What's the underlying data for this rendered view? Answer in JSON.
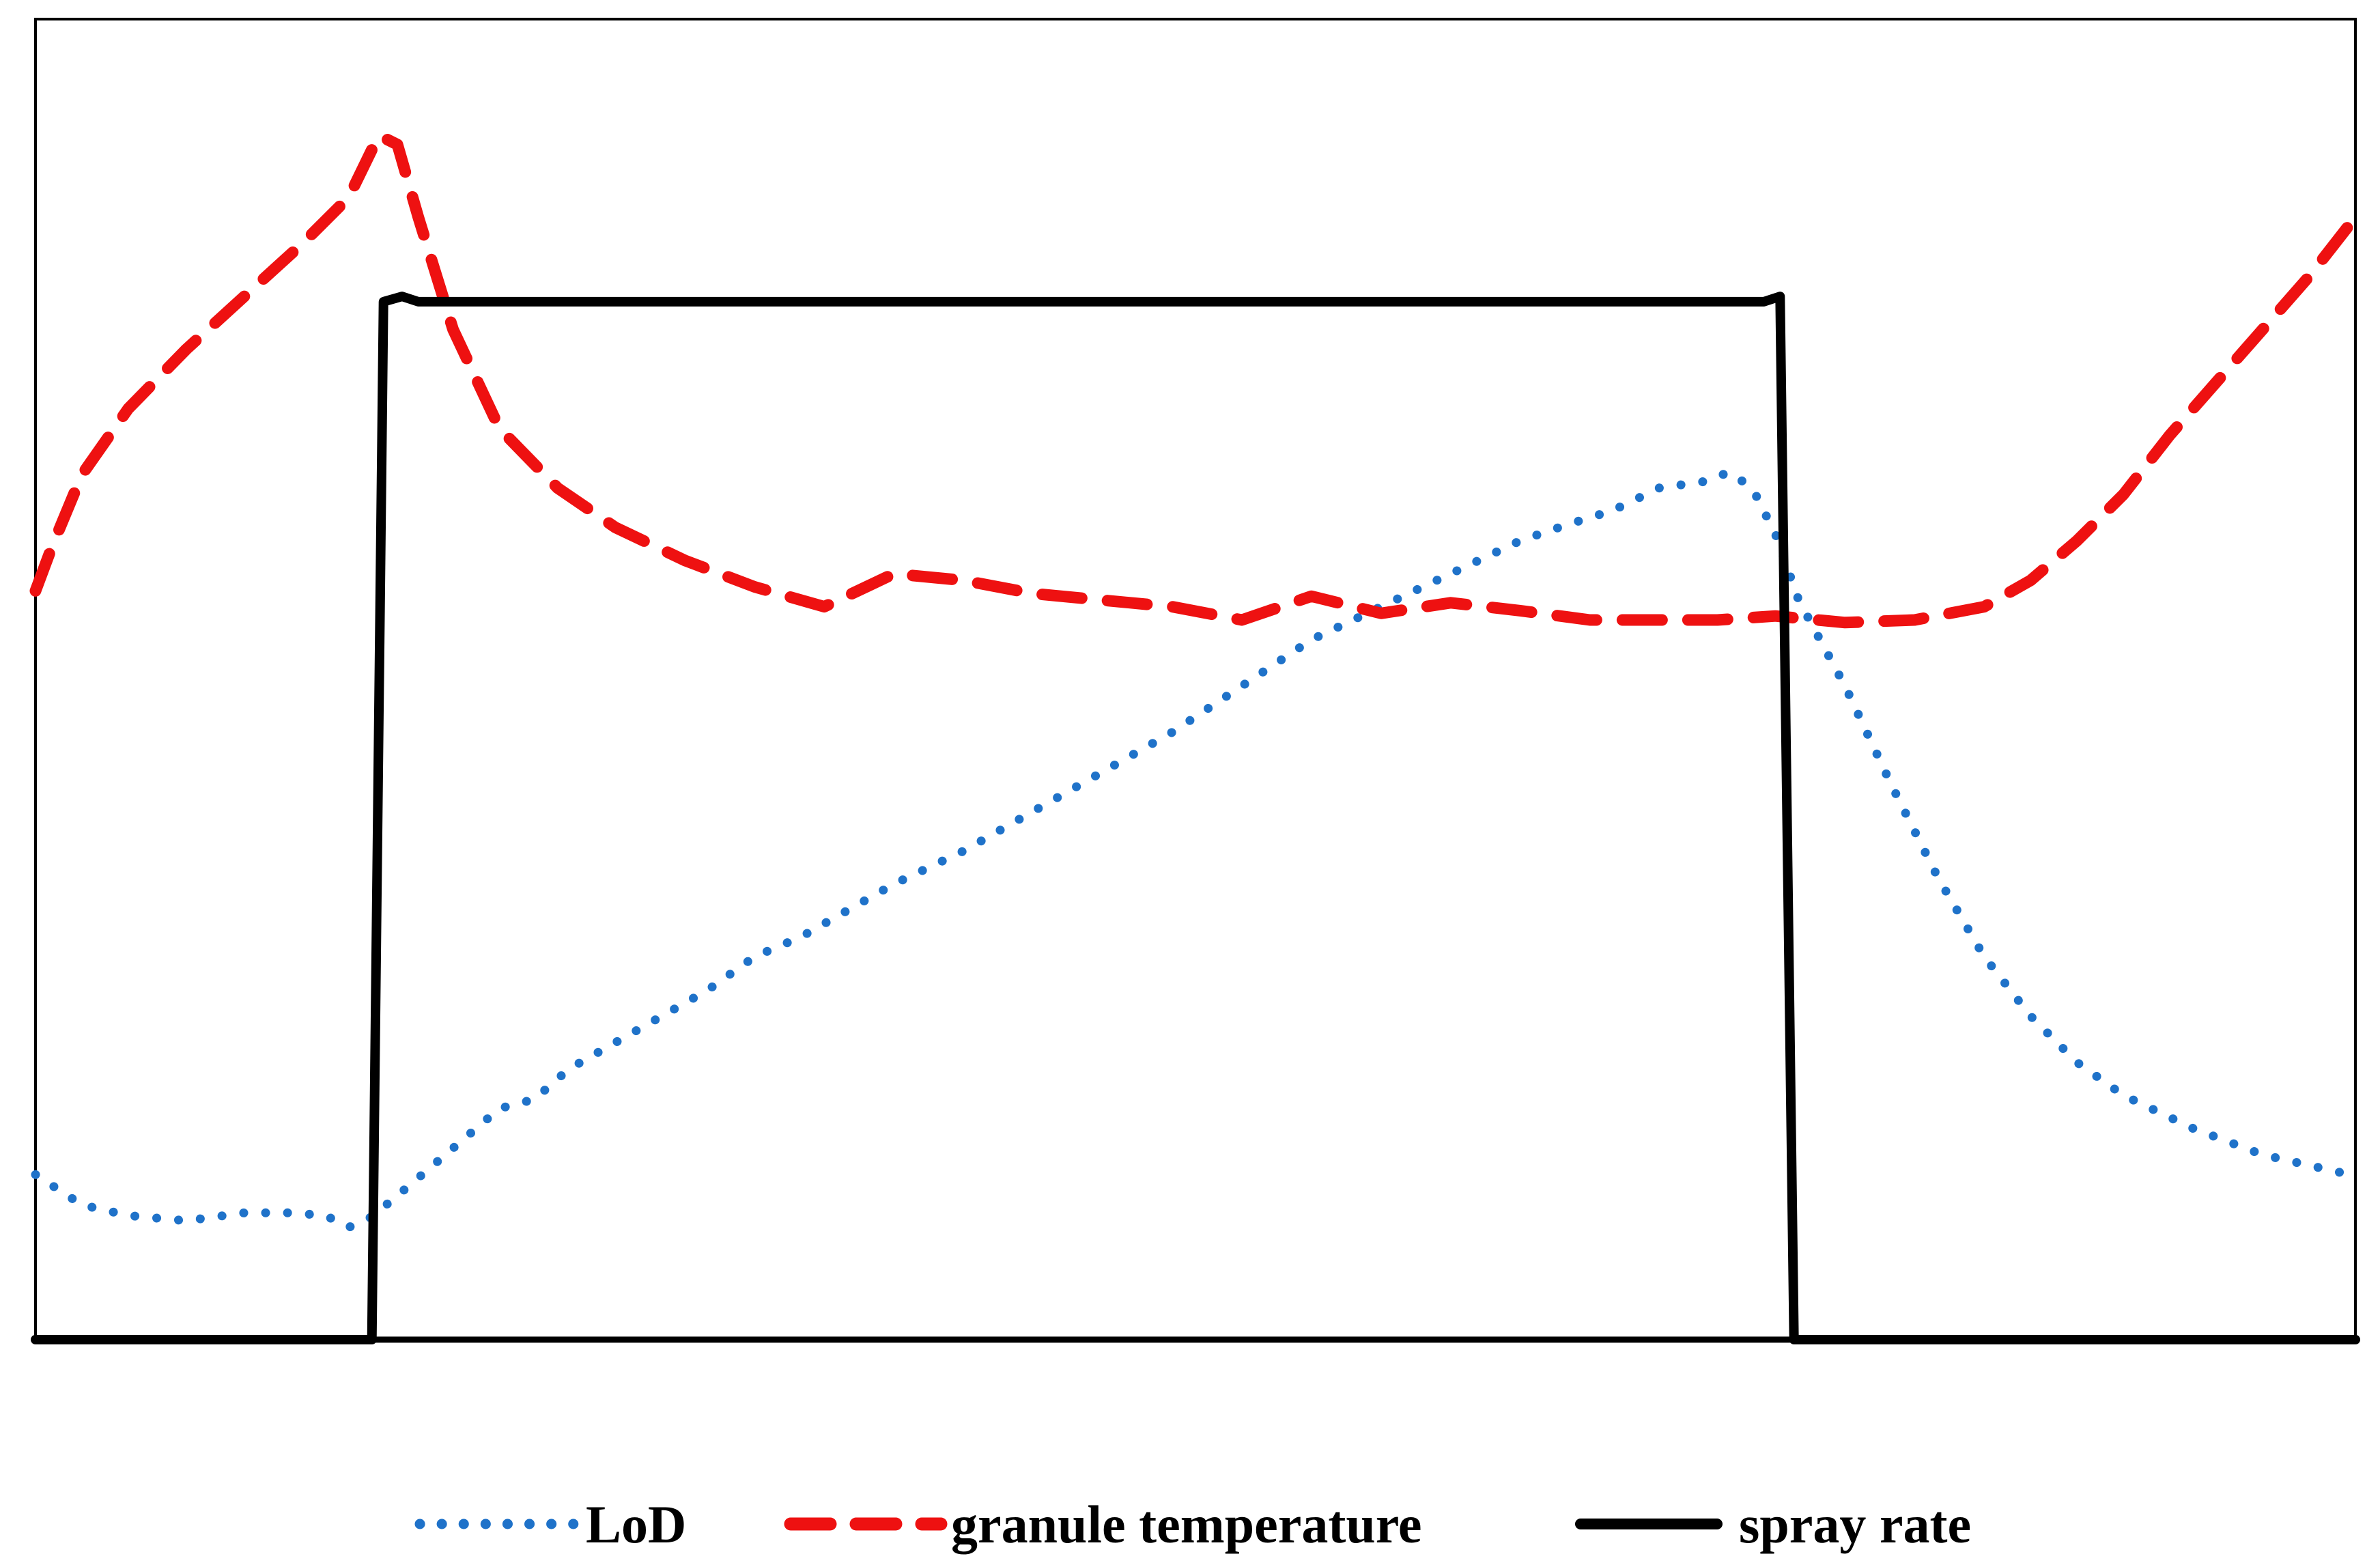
{
  "chart_data": {
    "type": "line",
    "title": "",
    "xlabel": "",
    "ylabel": "",
    "xlim": [
      0,
      100
    ],
    "ylim": [
      0,
      100
    ],
    "grid": false,
    "legend_position": "bottom",
    "series": [
      {
        "name": "LoD",
        "style": "dotted",
        "color": "#1f72c9",
        "x": [
          0,
          2,
          4,
          6.5,
          9,
          11,
          12.5,
          13.5,
          14.5,
          16,
          18,
          20,
          21.5,
          23,
          25,
          27,
          29,
          31,
          33,
          35,
          37,
          40,
          43,
          46,
          49,
          52,
          55,
          58,
          61,
          64,
          66,
          68,
          70,
          72,
          73,
          74,
          75,
          76,
          78,
          80,
          82,
          84,
          86,
          88,
          90,
          93,
          96,
          100
        ],
        "values": [
          12.5,
          10.2,
          9.4,
          9.0,
          9.6,
          9.6,
          9.4,
          8.5,
          9.3,
          11.5,
          14.5,
          17.5,
          18.2,
          20.5,
          22.5,
          24.5,
          26.5,
          29.0,
          30.5,
          32.5,
          34.5,
          37.0,
          40.0,
          43.0,
          46.0,
          49.5,
          53.0,
          55.5,
          58.0,
          60.5,
          61.7,
          62.8,
          64.5,
          65.0,
          65.7,
          64.5,
          61.0,
          56.0,
          49.5,
          42.0,
          35.0,
          29.0,
          24.5,
          21.0,
          18.5,
          16.0,
          14.0,
          12.4
        ]
      },
      {
        "name": "granule temperature",
        "style": "dashed",
        "color": "#ee1111",
        "x": [
          0,
          0.7,
          2,
          4,
          6.5,
          9,
          11.5,
          13.5,
          14.8,
          15.6,
          16.5,
          18,
          20,
          22.5,
          25,
          28,
          31,
          34,
          37,
          40,
          43,
          46,
          49,
          52,
          55,
          58,
          61,
          64,
          67,
          70,
          72.5,
          75,
          78,
          81,
          84,
          86,
          88,
          90,
          92,
          94,
          96,
          98,
          100
        ],
        "values": [
          56.7,
          60.0,
          65.5,
          70.5,
          75.0,
          79.0,
          83.0,
          86.5,
          91.2,
          90.5,
          85.0,
          76.5,
          69.0,
          64.5,
          61.5,
          59.0,
          57.0,
          55.5,
          58.0,
          57.5,
          56.5,
          56.0,
          55.5,
          54.5,
          56.3,
          55.0,
          55.8,
          55.2,
          54.5,
          54.5,
          54.5,
          54.8,
          54.3,
          54.5,
          55.5,
          57.5,
          60.5,
          64.0,
          68.5,
          72.5,
          76.5,
          80.5,
          85.0
        ]
      },
      {
        "name": "spray rate",
        "style": "solid",
        "color": "#000000",
        "x": [
          0,
          14.5,
          15,
          15.8,
          16.5,
          74.5,
          75.2,
          75.8,
          100
        ],
        "values": [
          0,
          0,
          78.6,
          79.0,
          78.6,
          78.6,
          79.0,
          0,
          0
        ]
      }
    ],
    "legend": [
      {
        "label": "LoD",
        "style": "dotted",
        "color": "#1f72c9"
      },
      {
        "label": "granule temperature",
        "style": "dashed",
        "color": "#ee1111"
      },
      {
        "label": "spray rate",
        "style": "solid",
        "color": "#000000"
      }
    ]
  }
}
